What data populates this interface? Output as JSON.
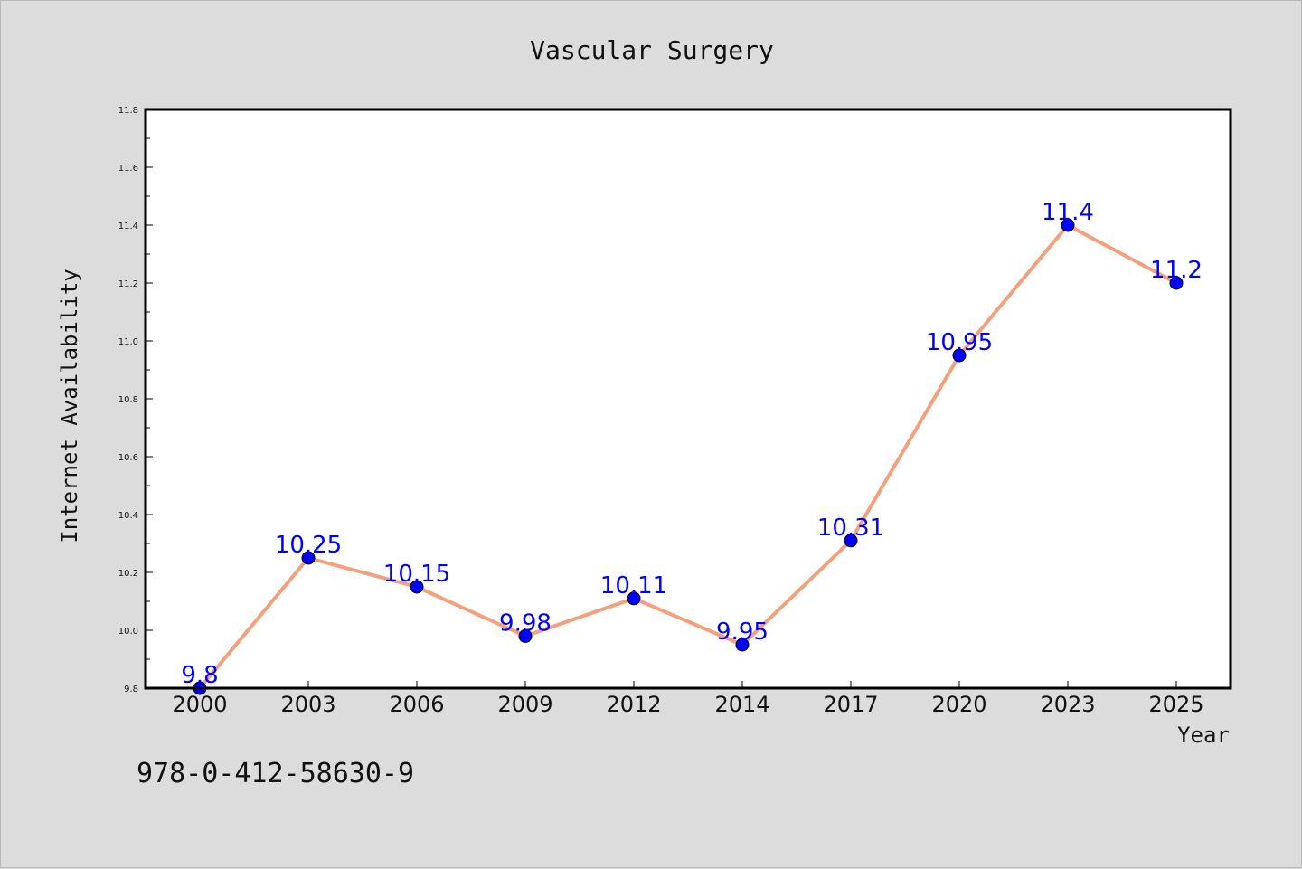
{
  "chart_data": {
    "type": "line",
    "title": "Vascular Surgery",
    "xlabel": "Year",
    "ylabel": "Internet Availability",
    "categories": [
      "2000",
      "2003",
      "2006",
      "2009",
      "2012",
      "2014",
      "2017",
      "2020",
      "2023",
      "2025"
    ],
    "series": [
      {
        "values": [
          9.8,
          10.25,
          10.15,
          9.98,
          10.11,
          9.95,
          10.31,
          10.95,
          11.4,
          11.2
        ]
      }
    ],
    "data_labels": [
      "9.8",
      "10.25",
      "10.15",
      "9.98",
      "10.11",
      "9.95",
      "10.31",
      "10.95",
      "11.4",
      "11.2"
    ],
    "ylim": [
      9.8,
      11.8
    ],
    "yticks": [
      "9.8",
      "10.0",
      "10.2",
      "10.4",
      "10.6",
      "10.8",
      "11.0",
      "11.2",
      "11.4",
      "11.6",
      "11.8"
    ],
    "grid": false,
    "legend": "none",
    "colors": {
      "line": "#f4a07c",
      "marker": "#0000ff",
      "label": "#0000ff",
      "background": "#dcdcdc",
      "plot_background": "#ffffff"
    }
  },
  "footer_text": "978-0-412-58630-9"
}
